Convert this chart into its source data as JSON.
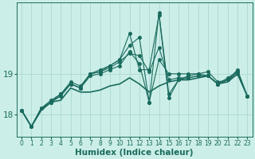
{
  "xlabel": "Humidex (Indice chaleur)",
  "bg_color": "#cceee8",
  "grid_color": "#aad8d0",
  "line_color": "#1a6b5e",
  "x": [
    0,
    1,
    2,
    3,
    4,
    5,
    6,
    7,
    8,
    9,
    10,
    11,
    12,
    13,
    14,
    15,
    16,
    17,
    18,
    19,
    20,
    21,
    22,
    23
  ],
  "lines": [
    [
      18.1,
      17.7,
      18.1,
      18.3,
      18.35,
      18.65,
      18.55,
      18.55,
      18.6,
      18.7,
      18.75,
      18.9,
      18.75,
      18.55,
      18.7,
      18.8,
      18.85,
      18.85,
      18.9,
      18.95,
      18.75,
      18.8,
      19.0,
      18.45
    ],
    [
      18.1,
      17.7,
      18.15,
      18.3,
      18.45,
      18.75,
      18.65,
      18.95,
      19.0,
      19.1,
      19.2,
      19.55,
      19.25,
      18.3,
      19.35,
      19.0,
      19.0,
      19.0,
      19.0,
      19.05,
      18.8,
      18.85,
      19.0,
      18.45
    ],
    [
      18.1,
      17.7,
      18.15,
      18.3,
      18.5,
      18.75,
      18.65,
      19.0,
      19.1,
      19.2,
      19.35,
      20.0,
      19.1,
      19.1,
      20.45,
      18.4,
      18.85,
      18.9,
      18.95,
      18.95,
      18.75,
      18.85,
      19.05,
      18.45
    ],
    [
      18.1,
      17.7,
      18.15,
      18.35,
      18.5,
      18.8,
      18.7,
      19.0,
      19.05,
      19.2,
      19.35,
      19.7,
      19.9,
      18.3,
      20.5,
      18.5,
      18.85,
      18.95,
      19.0,
      18.95,
      18.75,
      18.9,
      19.05,
      18.45
    ],
    [
      18.1,
      17.7,
      18.15,
      18.3,
      18.5,
      18.75,
      18.65,
      19.0,
      19.05,
      19.15,
      19.3,
      19.5,
      19.45,
      19.05,
      19.65,
      18.85,
      18.9,
      18.9,
      18.95,
      18.95,
      18.75,
      18.85,
      19.1,
      18.45
    ]
  ],
  "markers": [
    null,
    "o",
    "o",
    "o",
    "o"
  ],
  "marker_sizes": [
    0,
    3,
    3,
    3,
    3
  ],
  "linewidths": [
    1.2,
    0.8,
    0.8,
    0.8,
    0.8
  ],
  "ylim": [
    17.45,
    20.75
  ],
  "yticks": [
    18,
    19
  ],
  "xlim": [
    -0.5,
    23.5
  ],
  "xtick_fontsize": 5.5,
  "ytick_fontsize": 7.5,
  "xlabel_fontsize": 7.5
}
